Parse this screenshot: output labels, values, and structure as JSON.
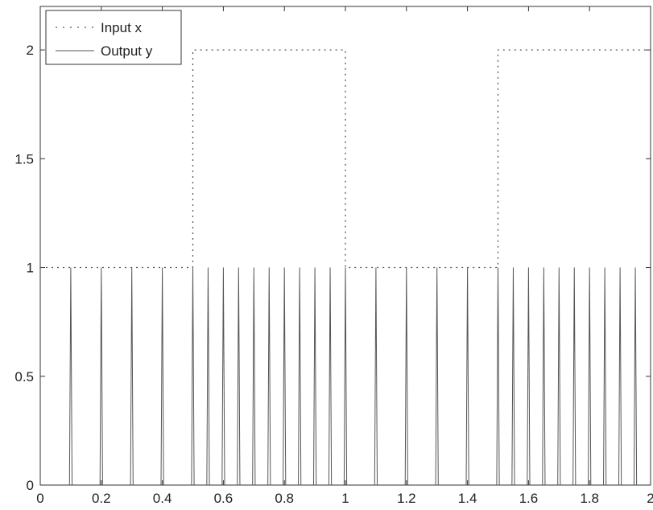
{
  "chart_data": {
    "type": "line",
    "title": "",
    "xlabel": "",
    "ylabel": "",
    "xlim": [
      0,
      2
    ],
    "ylim": [
      0,
      2.2
    ],
    "grid": false,
    "legend_placement": "top-left",
    "x_ticks": [
      0,
      0.2,
      0.4,
      0.6,
      0.8,
      1,
      1.2,
      1.4,
      1.6,
      1.8,
      2
    ],
    "x_tick_labels": [
      "0",
      "0.2",
      "0.4",
      "0.6",
      "0.8",
      "1",
      "1.2",
      "1.4",
      "1.6",
      "1.8",
      "2"
    ],
    "y_ticks": [
      0,
      0.5,
      1,
      1.5,
      2
    ],
    "y_tick_labels": [
      "0",
      "0.5",
      "1",
      "1.5",
      "2"
    ],
    "series": [
      {
        "name": "Input x",
        "style": "dotted",
        "color": "#555555",
        "x": [
          0,
          0.5,
          0.5,
          1.0,
          1.0,
          1.5,
          1.5,
          2.0
        ],
        "y": [
          1,
          1,
          2,
          2,
          1,
          1,
          2,
          2
        ]
      },
      {
        "name": "Output y",
        "style": "solid",
        "color": "#555555",
        "type": "spikes",
        "spike_height": 1,
        "spike_times": [
          0.1,
          0.2,
          0.3,
          0.4,
          0.5,
          0.55,
          0.6,
          0.65,
          0.7,
          0.75,
          0.8,
          0.85,
          0.9,
          0.95,
          1.0,
          1.1,
          1.2,
          1.3,
          1.4,
          1.5,
          1.55,
          1.6,
          1.65,
          1.7,
          1.75,
          1.8,
          1.85,
          1.9,
          1.95
        ]
      }
    ]
  }
}
